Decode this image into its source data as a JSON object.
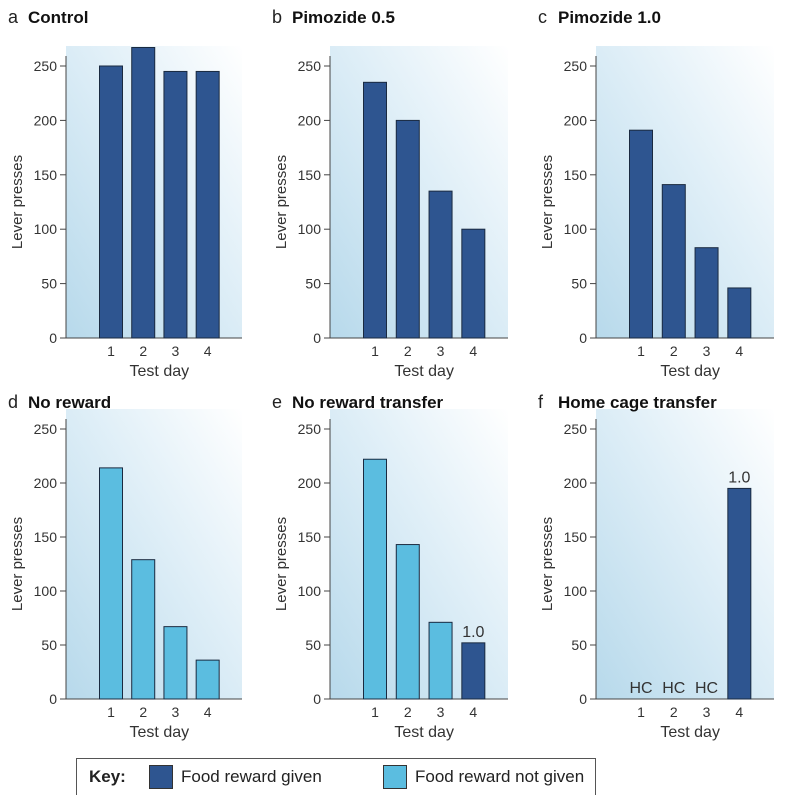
{
  "chart_data": [
    {
      "letter": "a",
      "title": "Control",
      "type": "bar",
      "xlabel": "Test day",
      "ylabel": "Lever presses",
      "ylim": [
        0,
        250
      ],
      "yticks": [
        "0",
        "50",
        "100",
        "150",
        "200",
        "250"
      ],
      "categories": [
        "1",
        "2",
        "3",
        "4"
      ],
      "values": [
        250,
        267,
        245,
        245
      ],
      "bar_types": [
        "given",
        "given",
        "given",
        "given"
      ],
      "annotations": [
        "",
        "",
        "",
        ""
      ]
    },
    {
      "letter": "b",
      "title": "Pimozide 0.5",
      "type": "bar",
      "xlabel": "Test day",
      "ylabel": "Lever presses",
      "ylim": [
        0,
        250
      ],
      "yticks": [
        "0",
        "50",
        "100",
        "150",
        "200",
        "250"
      ],
      "categories": [
        "1",
        "2",
        "3",
        "4"
      ],
      "values": [
        235,
        200,
        135,
        100
      ],
      "bar_types": [
        "given",
        "given",
        "given",
        "given"
      ],
      "annotations": [
        "",
        "",
        "",
        ""
      ]
    },
    {
      "letter": "c",
      "title": "Pimozide 1.0",
      "type": "bar",
      "xlabel": "Test day",
      "ylabel": "Lever presses",
      "ylim": [
        0,
        250
      ],
      "yticks": [
        "0",
        "50",
        "100",
        "150",
        "200",
        "250"
      ],
      "categories": [
        "1",
        "2",
        "3",
        "4"
      ],
      "values": [
        191,
        141,
        83,
        46
      ],
      "bar_types": [
        "given",
        "given",
        "given",
        "given"
      ],
      "annotations": [
        "",
        "",
        "",
        ""
      ]
    },
    {
      "letter": "d",
      "title": "No reward",
      "type": "bar",
      "xlabel": "Test day",
      "ylabel": "Lever presses",
      "ylim": [
        0,
        250
      ],
      "yticks": [
        "0",
        "50",
        "100",
        "150",
        "200",
        "250"
      ],
      "categories": [
        "1",
        "2",
        "3",
        "4"
      ],
      "values": [
        214,
        129,
        67,
        36
      ],
      "bar_types": [
        "not",
        "not",
        "not",
        "not"
      ],
      "annotations": [
        "",
        "",
        "",
        ""
      ]
    },
    {
      "letter": "e",
      "title": "No reward transfer",
      "type": "bar",
      "xlabel": "Test day",
      "ylabel": "Lever presses",
      "ylim": [
        0,
        250
      ],
      "yticks": [
        "0",
        "50",
        "100",
        "150",
        "200",
        "250"
      ],
      "categories": [
        "1",
        "2",
        "3",
        "4"
      ],
      "values": [
        222,
        143,
        71,
        52
      ],
      "bar_types": [
        "not",
        "not",
        "not",
        "given"
      ],
      "annotations": [
        "",
        "",
        "",
        "1.0"
      ]
    },
    {
      "letter": "f",
      "title": "Home cage transfer",
      "type": "bar",
      "xlabel": "Test day",
      "ylabel": "Lever presses",
      "ylim": [
        0,
        250
      ],
      "yticks": [
        "0",
        "50",
        "100",
        "150",
        "200",
        "250"
      ],
      "categories": [
        "1",
        "2",
        "3",
        "4"
      ],
      "values": [
        0,
        0,
        0,
        195
      ],
      "bar_types": [
        "none",
        "none",
        "none",
        "given"
      ],
      "annotations": [
        "HC",
        "HC",
        "HC",
        "1.0"
      ]
    }
  ],
  "key": {
    "title": "Key:",
    "given_label": "Food reward given",
    "not_given_label": "Food reward not given"
  },
  "colors": {
    "given": "#2e5590",
    "not_given": "#5bbde0",
    "bg_light": "#e8f4fa",
    "bg_dark": "#b7d9eb"
  }
}
